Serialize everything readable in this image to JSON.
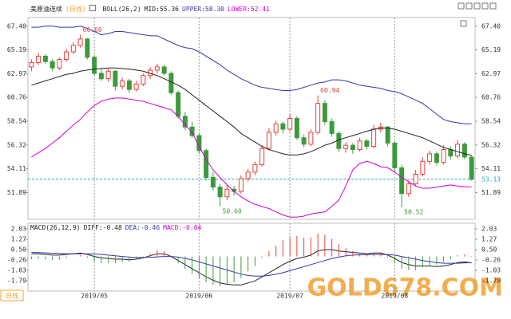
{
  "chart_data": [
    {
      "type": "candlestick",
      "title": "美原油连续",
      "period": "(日线)",
      "indicator": "BOLL(26,2)",
      "categories": [
        null,
        null,
        null,
        null,
        null,
        null,
        null,
        null,
        null,
        "2019/05",
        null,
        null,
        null,
        null,
        null,
        null,
        null,
        null,
        null,
        null,
        null,
        null,
        null,
        null,
        "2019/06",
        null,
        null,
        null,
        null,
        null,
        null,
        null,
        null,
        null,
        null,
        null,
        null,
        "2019/07",
        null,
        null,
        null,
        null,
        null,
        null,
        null,
        null,
        null,
        null,
        null,
        null,
        null,
        null,
        "2019/08",
        null,
        null,
        null,
        null,
        null,
        null,
        null,
        null,
        null,
        null,
        null
      ],
      "ohlc": [
        [
          63.6,
          64.3,
          63.2,
          64.0
        ],
        [
          64.0,
          64.9,
          63.8,
          64.6
        ],
        [
          64.6,
          64.8,
          63.9,
          64.1
        ],
        [
          64.1,
          64.3,
          63.2,
          63.5
        ],
        [
          63.5,
          64.5,
          63.3,
          64.3
        ],
        [
          64.3,
          65.3,
          64.1,
          65.0
        ],
        [
          65.0,
          65.9,
          64.8,
          65.6
        ],
        [
          65.6,
          66.6,
          65.4,
          66.2
        ],
        [
          66.2,
          66.3,
          64.3,
          64.5
        ],
        [
          64.5,
          64.7,
          62.8,
          63.0
        ],
        [
          63.0,
          63.4,
          62.3,
          62.5
        ],
        [
          62.5,
          63.5,
          62.2,
          63.2
        ],
        [
          63.2,
          63.3,
          61.4,
          61.8
        ],
        [
          61.8,
          62.6,
          61.5,
          62.3
        ],
        [
          62.3,
          62.5,
          61.2,
          61.5
        ],
        [
          61.5,
          62.3,
          61.3,
          62.0
        ],
        [
          62.0,
          63.0,
          61.8,
          62.8
        ],
        [
          62.8,
          63.6,
          62.5,
          63.3
        ],
        [
          63.3,
          63.9,
          63.0,
          63.6
        ],
        [
          63.6,
          63.8,
          62.8,
          63.0
        ],
        [
          63.0,
          63.2,
          61.0,
          61.2
        ],
        [
          61.2,
          61.4,
          58.8,
          59.0
        ],
        [
          59.0,
          59.4,
          57.7,
          58.0
        ],
        [
          58.0,
          58.5,
          57.0,
          57.2
        ],
        [
          57.2,
          57.4,
          55.5,
          55.8
        ],
        [
          55.8,
          56.0,
          53.0,
          53.3
        ],
        [
          53.3,
          53.8,
          52.1,
          52.4
        ],
        [
          52.4,
          52.7,
          50.6,
          51.5
        ],
        [
          51.5,
          52.6,
          51.2,
          52.2
        ],
        [
          52.2,
          52.5,
          51.6,
          52.0
        ],
        [
          52.0,
          53.5,
          51.8,
          53.2
        ],
        [
          53.2,
          54.1,
          52.9,
          53.8
        ],
        [
          53.8,
          54.8,
          53.5,
          54.5
        ],
        [
          54.5,
          56.3,
          54.3,
          56.0
        ],
        [
          56.0,
          57.9,
          55.8,
          57.5
        ],
        [
          57.5,
          58.6,
          57.2,
          58.3
        ],
        [
          58.3,
          58.5,
          57.4,
          57.8
        ],
        [
          57.8,
          59.2,
          57.6,
          58.8
        ],
        [
          58.8,
          59.0,
          56.8,
          57.0
        ],
        [
          57.0,
          57.3,
          56.1,
          56.4
        ],
        [
          56.4,
          57.8,
          56.2,
          57.5
        ],
        [
          57.5,
          60.94,
          57.3,
          60.2
        ],
        [
          60.2,
          60.5,
          58.2,
          58.5
        ],
        [
          58.5,
          58.8,
          57.1,
          57.4
        ],
        [
          57.4,
          57.6,
          55.7,
          56.0
        ],
        [
          56.0,
          56.6,
          55.6,
          56.3
        ],
        [
          56.3,
          56.5,
          55.5,
          55.9
        ],
        [
          55.9,
          57.0,
          55.7,
          56.7
        ],
        [
          56.7,
          56.9,
          55.9,
          56.2
        ],
        [
          56.2,
          58.2,
          56.0,
          57.8
        ],
        [
          57.8,
          58.4,
          57.5,
          58.0
        ],
        [
          58.0,
          58.1,
          56.2,
          56.5
        ],
        [
          56.5,
          56.7,
          53.9,
          54.2
        ],
        [
          54.2,
          54.5,
          50.52,
          51.8
        ],
        [
          51.8,
          53.0,
          51.5,
          52.7
        ],
        [
          52.7,
          54.0,
          52.5,
          53.6
        ],
        [
          53.6,
          55.2,
          53.4,
          54.8
        ],
        [
          54.8,
          55.8,
          54.5,
          55.5
        ],
        [
          55.5,
          55.7,
          54.4,
          54.7
        ],
        [
          54.7,
          56.3,
          54.5,
          55.9
        ],
        [
          55.9,
          56.2,
          55.0,
          55.3
        ],
        [
          55.3,
          56.8,
          55.1,
          56.4
        ],
        [
          56.4,
          56.6,
          55.0,
          55.2
        ],
        [
          55.2,
          55.3,
          53.0,
          53.13
        ]
      ],
      "up_color": "#e8403a",
      "down_color": "#3c9a3c",
      "series": [
        {
          "name": "MID:55.36",
          "color": "#222222",
          "values": [
            61.9,
            62.1,
            62.3,
            62.5,
            62.7,
            62.9,
            63.0,
            63.2,
            63.3,
            63.4,
            63.45,
            63.5,
            63.5,
            63.45,
            63.4,
            63.3,
            63.2,
            63.0,
            62.8,
            62.5,
            62.2,
            61.9,
            61.5,
            61.0,
            60.5,
            60.0,
            59.5,
            59.0,
            58.5,
            58.0,
            57.4,
            57.0,
            56.6,
            56.2,
            55.9,
            55.7,
            55.5,
            55.4,
            55.4,
            55.5,
            55.7,
            56.0,
            56.3,
            56.5,
            56.8,
            57.0,
            57.2,
            57.4,
            57.6,
            57.8,
            57.9,
            57.9,
            57.8,
            57.6,
            57.4,
            57.2,
            57.0,
            56.7,
            56.4,
            56.1,
            55.9,
            55.7,
            55.5,
            55.36
          ]
        },
        {
          "name": "UPPER:58.30",
          "color": "#3535b0",
          "values": [
            67.3,
            67.3,
            67.4,
            67.4,
            67.3,
            67.3,
            67.3,
            67.4,
            67.2,
            66.9,
            66.6,
            66.7,
            66.9,
            66.9,
            66.8,
            66.7,
            66.6,
            66.5,
            66.5,
            66.2,
            65.9,
            65.6,
            65.4,
            65.3,
            65.0,
            64.6,
            64.2,
            63.8,
            63.3,
            62.9,
            62.5,
            62.2,
            61.9,
            61.7,
            61.6,
            61.5,
            61.4,
            61.4,
            61.5,
            61.7,
            61.9,
            62.1,
            62.2,
            62.4,
            62.4,
            62.3,
            62.1,
            61.9,
            61.8,
            61.7,
            61.6,
            61.4,
            61.3,
            61.1,
            60.8,
            60.5,
            60.2,
            59.7,
            59.2,
            58.7,
            58.5,
            58.4,
            58.3,
            58.3
          ]
        },
        {
          "name": "LOWER:52.41",
          "color": "#d000d0",
          "values": [
            55.2,
            55.6,
            56.0,
            56.5,
            57.0,
            57.6,
            58.2,
            58.7,
            59.4,
            60.0,
            60.4,
            60.6,
            60.7,
            60.7,
            60.6,
            60.5,
            60.4,
            60.2,
            60.0,
            59.8,
            59.6,
            59.0,
            58.2,
            57.5,
            56.2,
            55.0,
            54.0,
            53.3,
            52.6,
            52.0,
            51.5,
            51.1,
            50.8,
            50.6,
            50.4,
            50.1,
            49.8,
            49.6,
            49.6,
            49.7,
            49.9,
            50.0,
            50.1,
            50.6,
            51.2,
            52.5,
            54.0,
            54.6,
            54.8,
            54.6,
            54.3,
            54.2,
            53.8,
            53.3,
            52.9,
            52.5,
            52.3,
            52.3,
            52.4,
            52.5,
            52.6,
            52.5,
            52.45,
            52.41
          ]
        }
      ],
      "annotations": [
        {
          "value": 66.6,
          "label": "66.60"
        },
        {
          "value": 60.94,
          "label": "60.94"
        },
        {
          "value": 50.6,
          "label": "50.60"
        },
        {
          "value": 50.52,
          "label": "50.52"
        }
      ],
      "last_price": 53.13,
      "last_price_color": "#22a8c8",
      "ylim": [
        49.4,
        68.2
      ],
      "yticks": [
        {
          "value": 67.4,
          "label": "67.40"
        },
        65.19,
        62.97,
        60.76,
        58.54,
        56.32,
        54.11,
        51.89
      ]
    },
    {
      "type": "macd",
      "title": "MACD(26,12,9)",
      "series": [
        {
          "name": "DIFF:-0.48",
          "color": "#222222",
          "values": [
            0.2,
            0.2,
            0.15,
            0.1,
            0.1,
            0.15,
            0.2,
            0.25,
            0.15,
            0.0,
            -0.1,
            -0.15,
            -0.2,
            -0.2,
            -0.25,
            -0.2,
            -0.1,
            0.05,
            0.2,
            0.2,
            0.0,
            -0.3,
            -0.6,
            -0.9,
            -1.2,
            -1.5,
            -1.75,
            -1.95,
            -2.05,
            -2.1,
            -2.1,
            -1.95,
            -1.8,
            -1.5,
            -1.2,
            -0.9,
            -0.6,
            -0.35,
            -0.15,
            -0.05,
            0.1,
            0.4,
            0.5,
            0.5,
            0.4,
            0.35,
            0.3,
            0.25,
            0.2,
            0.25,
            0.25,
            0.1,
            -0.15,
            -0.45,
            -0.6,
            -0.7,
            -0.7,
            -0.7,
            -0.75,
            -0.7,
            -0.6,
            -0.45,
            -0.4,
            -0.48
          ]
        },
        {
          "name": "DEA:-0.46",
          "color": "#3535b0",
          "values": [
            0.3,
            0.28,
            0.26,
            0.24,
            0.22,
            0.2,
            0.2,
            0.2,
            0.2,
            0.18,
            0.15,
            0.1,
            0.05,
            0.0,
            -0.05,
            -0.08,
            -0.08,
            -0.06,
            -0.03,
            0.0,
            0.0,
            -0.05,
            -0.15,
            -0.25,
            -0.4,
            -0.55,
            -0.7,
            -0.85,
            -1.0,
            -1.15,
            -1.3,
            -1.4,
            -1.45,
            -1.45,
            -1.4,
            -1.3,
            -1.2,
            -1.05,
            -0.9,
            -0.75,
            -0.6,
            -0.45,
            -0.3,
            -0.15,
            -0.05,
            0.05,
            0.1,
            0.12,
            0.14,
            0.15,
            0.15,
            0.14,
            0.1,
            0.0,
            -0.1,
            -0.2,
            -0.3,
            -0.38,
            -0.45,
            -0.5,
            -0.5,
            -0.5,
            -0.47,
            -0.46
          ]
        },
        {
          "name": "MACD:-0.04",
          "color": "#d000d0",
          "histogram": true,
          "up_color": "#e8403a",
          "down_color": "#3c9a3c",
          "values": [
            -0.2,
            -0.16,
            -0.22,
            -0.28,
            -0.24,
            -0.1,
            0,
            0.1,
            -0.1,
            -0.36,
            -0.5,
            -0.5,
            -0.5,
            -0.4,
            -0.4,
            -0.24,
            -0.04,
            0.22,
            0.46,
            0.4,
            0,
            -0.5,
            -0.9,
            -1.3,
            -1.6,
            -1.9,
            -2.1,
            -2.2,
            -2.1,
            -1.9,
            -1.6,
            -1.1,
            -0.7,
            -0.1,
            0.4,
            0.8,
            1.2,
            1.4,
            1.5,
            1.4,
            1.4,
            1.7,
            1.6,
            1.3,
            0.9,
            0.6,
            0.4,
            0.26,
            0.12,
            0.2,
            0.2,
            -0.08,
            -0.5,
            -0.9,
            -1.0,
            -1.0,
            -0.8,
            -0.64,
            -0.6,
            -0.4,
            -0.2,
            0.1,
            0.14,
            -0.04
          ]
        }
      ],
      "ylim": [
        -2.55,
        2.44
      ],
      "yticks": [
        2.03,
        1.27,
        {
          "value": 0.5,
          "label": "0.50"
        },
        -0.26,
        -1.03,
        -1.79
      ]
    }
  ],
  "tab": "日线",
  "watermark": "GOLD678.COM"
}
